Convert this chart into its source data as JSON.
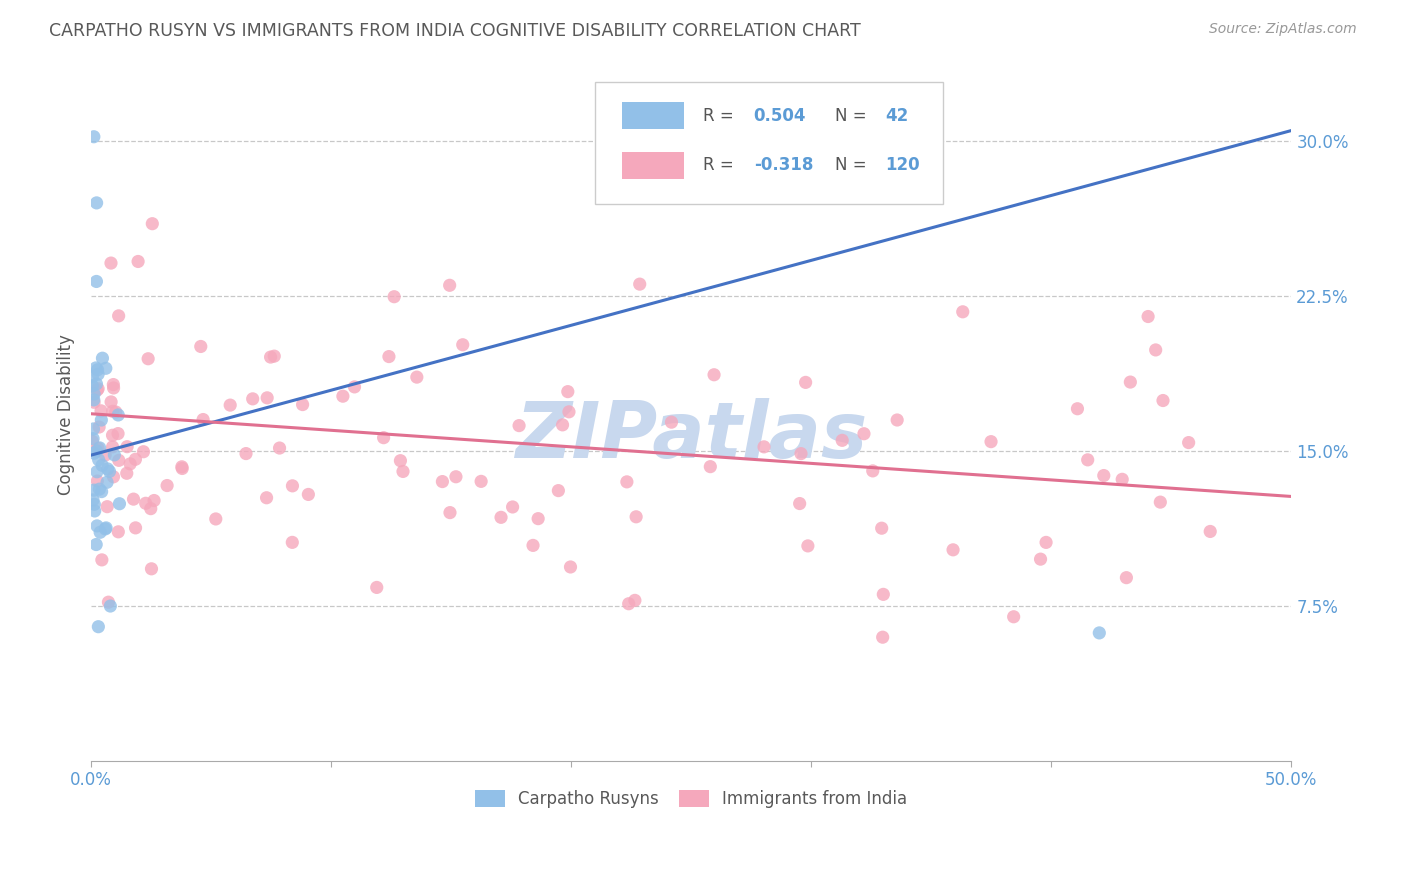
{
  "title": "CARPATHO RUSYN VS IMMIGRANTS FROM INDIA COGNITIVE DISABILITY CORRELATION CHART",
  "source": "Source: ZipAtlas.com",
  "ylabel": "Cognitive Disability",
  "ytick_labels": [
    "7.5%",
    "15.0%",
    "22.5%",
    "30.0%"
  ],
  "ytick_values": [
    0.075,
    0.15,
    0.225,
    0.3
  ],
  "xlim": [
    0.0,
    0.5
  ],
  "ylim": [
    0.0,
    0.335
  ],
  "blue_color": "#92C0E8",
  "pink_color": "#F5A8BC",
  "blue_line_color": "#4472C4",
  "pink_line_color": "#E07090",
  "title_color": "#595959",
  "source_color": "#999999",
  "watermark_color": "#C8D8EE",
  "axis_label_color": "#5B9BD5",
  "grid_color": "#BBBBBB",
  "background_color": "#FFFFFF",
  "blue_line_x0": 0.0,
  "blue_line_y0": 0.148,
  "blue_line_x1": 0.5,
  "blue_line_y1": 0.305,
  "pink_line_x0": 0.0,
  "pink_line_y0": 0.168,
  "pink_line_x1": 0.5,
  "pink_line_y1": 0.128
}
